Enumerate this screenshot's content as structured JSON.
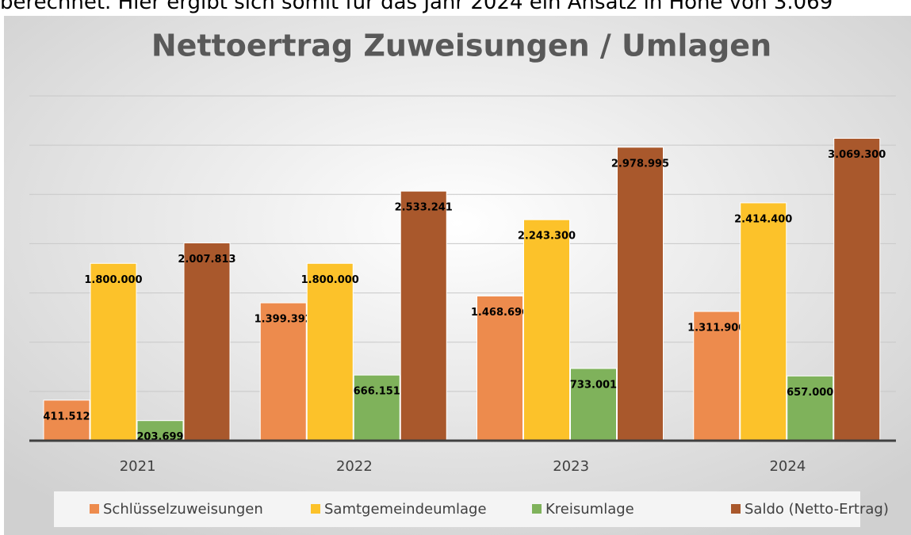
{
  "page_text": "berechnet. Hier ergibt sich somit für das Jahr 2024 ein Ansatz in Höhe von 3.069",
  "chart_data": {
    "type": "bar",
    "title": "Nettoertrag Zuweisungen / Umlagen",
    "categories": [
      "2021",
      "2022",
      "2023",
      "2024"
    ],
    "series": [
      {
        "name": "Schlüsselzuweisungen",
        "color": "#ed8b4d",
        "values": [
          411512,
          1399392,
          1468696,
          1311900
        ],
        "value_labels": [
          "411.512",
          "1.399.392",
          "1.468.696",
          "1.311.900"
        ]
      },
      {
        "name": "Samtgemeindeumlage",
        "color": "#fcc22a",
        "values": [
          1800000,
          1800000,
          2243300,
          2414400
        ],
        "value_labels": [
          "1.800.000",
          "1.800.000",
          "2.243.300",
          "2.414.400"
        ]
      },
      {
        "name": "Kreisumlage",
        "color": "#7fb25b",
        "values": [
          203699,
          666151,
          733001,
          657000
        ],
        "value_labels": [
          "203.699",
          "666.151",
          "733.001",
          "657.000"
        ]
      },
      {
        "name": "Saldo (Netto-Ertrag)",
        "color": "#a9582c",
        "values": [
          2007813,
          2533241,
          2978995,
          3069300
        ],
        "value_labels": [
          "2.007.813",
          "2.533.241",
          "2.978.995",
          "3.069.300"
        ]
      }
    ],
    "ylim": [
      0,
      3500000
    ],
    "yticks": [
      0,
      500000,
      1000000,
      1500000,
      2000000,
      2500000,
      3000000,
      3500000
    ],
    "grid": true
  }
}
